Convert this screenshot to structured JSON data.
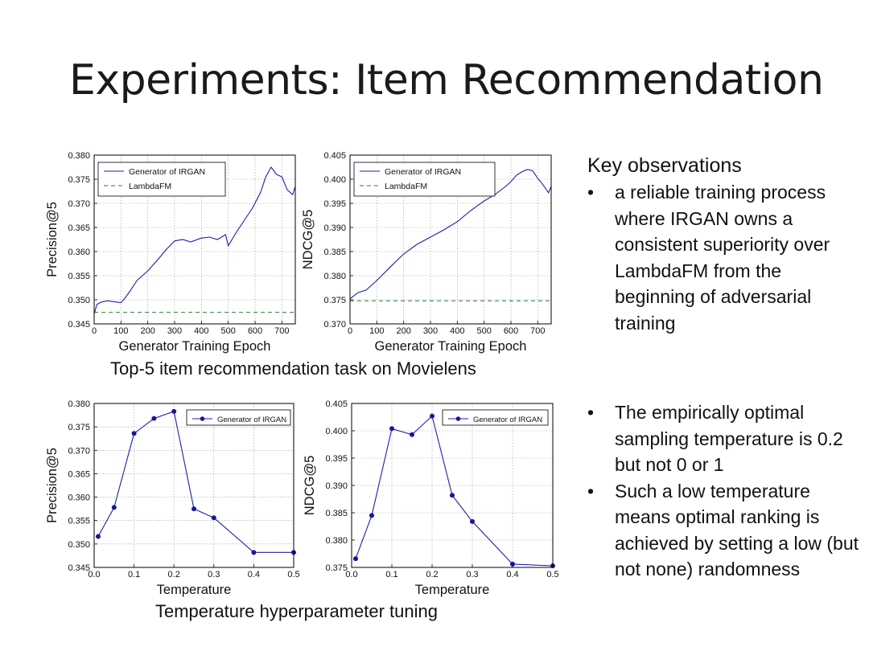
{
  "slide": {
    "title": "Experiments: Item Recommendation"
  },
  "captions": {
    "top": "Top-5 item recommendation task on Movielens",
    "bottom": "Temperature hyperparameter tuning"
  },
  "observations": {
    "heading": "Key observations",
    "bullet_glyph": "•",
    "bullets_top": [
      "a reliable training process where IRGAN owns a consistent superiority over LambdaFM from the beginning of adversarial training"
    ],
    "bullets_bottom": [
      "The empirically optimal sampling temperature is 0.2 but not 0 or 1",
      "Such a low temperature means optimal ranking is achieved by setting a low (but not none) randomness"
    ]
  },
  "colors": {
    "irgan": "#1f1fa8",
    "lambdafm": "#2e7d2e",
    "grid": "#9a9a9a",
    "marker": "#16169a"
  },
  "chart_data": [
    {
      "type": "line",
      "xlabel": "Generator Training Epoch",
      "ylabel": "Precision@5",
      "xlim": [
        0,
        750
      ],
      "ylim": [
        0.345,
        0.38
      ],
      "xticks": [
        "0",
        "100",
        "200",
        "300",
        "400",
        "500",
        "600",
        "700"
      ],
      "yticks": [
        "0.345",
        "0.350",
        "0.355",
        "0.360",
        "0.365",
        "0.370",
        "0.375",
        "0.380"
      ],
      "grid": true,
      "legend_position": "upper-left",
      "series": [
        {
          "name": "Generator of IRGAN",
          "style": "solid",
          "x": [
            0,
            10,
            25,
            50,
            75,
            100,
            110,
            130,
            160,
            200,
            240,
            270,
            300,
            330,
            360,
            400,
            430,
            460,
            490,
            500,
            530,
            560,
            590,
            620,
            640,
            660,
            680,
            700,
            720,
            740,
            750
          ],
          "y": [
            0.347,
            0.349,
            0.3495,
            0.3498,
            0.3496,
            0.3494,
            0.35,
            0.3515,
            0.354,
            0.356,
            0.3585,
            0.3605,
            0.3622,
            0.3625,
            0.362,
            0.3628,
            0.363,
            0.3625,
            0.3635,
            0.3612,
            0.364,
            0.3665,
            0.369,
            0.3722,
            0.3755,
            0.3775,
            0.376,
            0.3755,
            0.3728,
            0.3718,
            0.3735
          ]
        },
        {
          "name": "LambdaFM",
          "style": "dashed",
          "x": [
            0,
            750
          ],
          "y": [
            0.3474,
            0.3474
          ]
        }
      ]
    },
    {
      "type": "line",
      "xlabel": "Generator Training Epoch",
      "ylabel": "NDCG@5",
      "xlim": [
        0,
        750
      ],
      "ylim": [
        0.37,
        0.405
      ],
      "xticks": [
        "0",
        "100",
        "200",
        "300",
        "400",
        "500",
        "600",
        "700"
      ],
      "yticks": [
        "0.370",
        "0.375",
        "0.380",
        "0.385",
        "0.390",
        "0.395",
        "0.400",
        "0.405"
      ],
      "grid": true,
      "legend_position": "upper-left",
      "series": [
        {
          "name": "Generator of IRGAN",
          "style": "solid",
          "x": [
            0,
            30,
            60,
            100,
            150,
            200,
            250,
            300,
            350,
            400,
            450,
            500,
            540,
            580,
            600,
            620,
            640,
            660,
            680,
            700,
            720,
            740,
            750
          ],
          "y": [
            0.3752,
            0.3765,
            0.377,
            0.379,
            0.3818,
            0.3845,
            0.3865,
            0.388,
            0.3895,
            0.3912,
            0.3935,
            0.3955,
            0.3968,
            0.3985,
            0.3995,
            0.4008,
            0.4015,
            0.402,
            0.4018,
            0.4002,
            0.3988,
            0.3972,
            0.3985
          ]
        },
        {
          "name": "LambdaFM",
          "style": "dashed",
          "x": [
            0,
            750
          ],
          "y": [
            0.3748,
            0.3748
          ]
        }
      ]
    },
    {
      "type": "line",
      "xlabel": "Temperature",
      "ylabel": "Precision@5",
      "xlim": [
        0.0,
        0.5
      ],
      "ylim": [
        0.345,
        0.38
      ],
      "xticks": [
        "0.0",
        "0.1",
        "0.2",
        "0.3",
        "0.4",
        "0.5"
      ],
      "yticks": [
        "0.345",
        "0.350",
        "0.355",
        "0.360",
        "0.365",
        "0.370",
        "0.375",
        "0.380"
      ],
      "grid": true,
      "legend_position": "upper-right",
      "series": [
        {
          "name": "Generator of IRGAN",
          "style": "solid-marker",
          "x": [
            0.01,
            0.05,
            0.1,
            0.15,
            0.2,
            0.25,
            0.3,
            0.4,
            0.5
          ],
          "y": [
            0.3516,
            0.3578,
            0.3736,
            0.3768,
            0.3783,
            0.3575,
            0.3556,
            0.3482,
            0.3482
          ]
        }
      ]
    },
    {
      "type": "line",
      "xlabel": "Temperature",
      "ylabel": "NDCG@5",
      "xlim": [
        0.0,
        0.5
      ],
      "ylim": [
        0.375,
        0.405
      ],
      "xticks": [
        "0.0",
        "0.1",
        "0.2",
        "0.3",
        "0.4",
        "0.5"
      ],
      "yticks": [
        "0.375",
        "0.380",
        "0.385",
        "0.390",
        "0.395",
        "0.400",
        "0.405"
      ],
      "grid": true,
      "legend_position": "upper-right",
      "series": [
        {
          "name": "Generator of IRGAN",
          "style": "solid-marker",
          "x": [
            0.01,
            0.05,
            0.1,
            0.15,
            0.2,
            0.25,
            0.3,
            0.4,
            0.5
          ],
          "y": [
            0.3766,
            0.3845,
            0.4004,
            0.3993,
            0.4027,
            0.3882,
            0.3834,
            0.3756,
            0.3753
          ]
        }
      ]
    }
  ]
}
